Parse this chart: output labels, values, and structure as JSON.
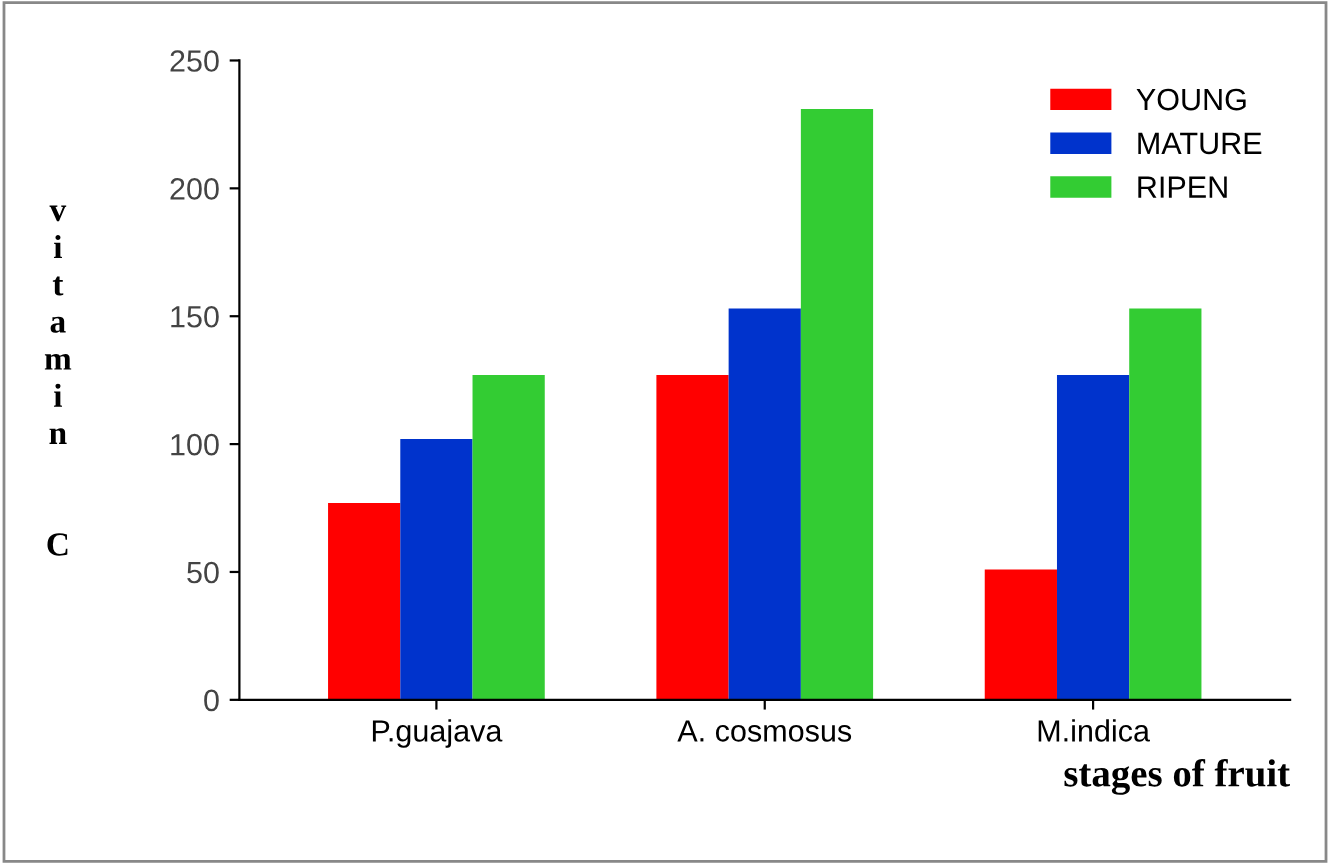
{
  "chart_data": {
    "type": "bar",
    "xlabel": "stages of fruit",
    "ylabel": "vitamin C",
    "categories": [
      "P.guajava",
      "A. cosmosus",
      "M.indica"
    ],
    "series": [
      {
        "name": "YOUNG",
        "color": "#ff0000",
        "values": [
          77,
          127,
          51
        ]
      },
      {
        "name": "MATURE",
        "color": "#0033cc",
        "values": [
          102,
          153,
          127
        ]
      },
      {
        "name": "RIPEN",
        "color": "#33cc33",
        "values": [
          127,
          231,
          153
        ]
      }
    ],
    "ylim": [
      0,
      250
    ],
    "yticks": [
      0,
      50,
      100,
      150,
      200,
      250
    ],
    "grid": false,
    "legend": "top right"
  }
}
